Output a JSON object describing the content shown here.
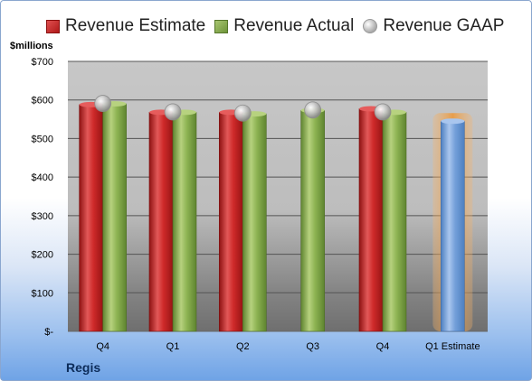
{
  "chart_data": {
    "type": "bar",
    "ylabel": "$millions",
    "ylim": [
      0,
      700
    ],
    "yticks": [
      0,
      100,
      200,
      300,
      400,
      500,
      600,
      700
    ],
    "ytick_labels": [
      "$-",
      "$100",
      "$200",
      "$300",
      "$400",
      "$500",
      "$600",
      "$700"
    ],
    "categories": [
      "Q4",
      "Q1",
      "Q2",
      "Q3",
      "Q4",
      "Q1 Estimate"
    ],
    "series": [
      {
        "name": "Revenue Estimate",
        "type": "bar",
        "color": "#c42222",
        "values": [
          588,
          568,
          568,
          null,
          577,
          null
        ]
      },
      {
        "name": "Revenue Actual",
        "type": "bar",
        "color": "#86ac4a",
        "values": [
          590,
          568,
          564,
          573,
          568,
          null
        ]
      },
      {
        "name": "Revenue GAAP",
        "type": "scatter",
        "color": "#b8b8b8",
        "values": [
          591,
          569,
          566,
          574,
          569,
          null
        ]
      },
      {
        "name": "",
        "type": "bar",
        "color": "#6d9bd6",
        "highlight": "#f2a25c",
        "values": [
          null,
          null,
          null,
          null,
          null,
          545
        ]
      }
    ],
    "grid": true,
    "legend": "top",
    "company": "Regis"
  }
}
